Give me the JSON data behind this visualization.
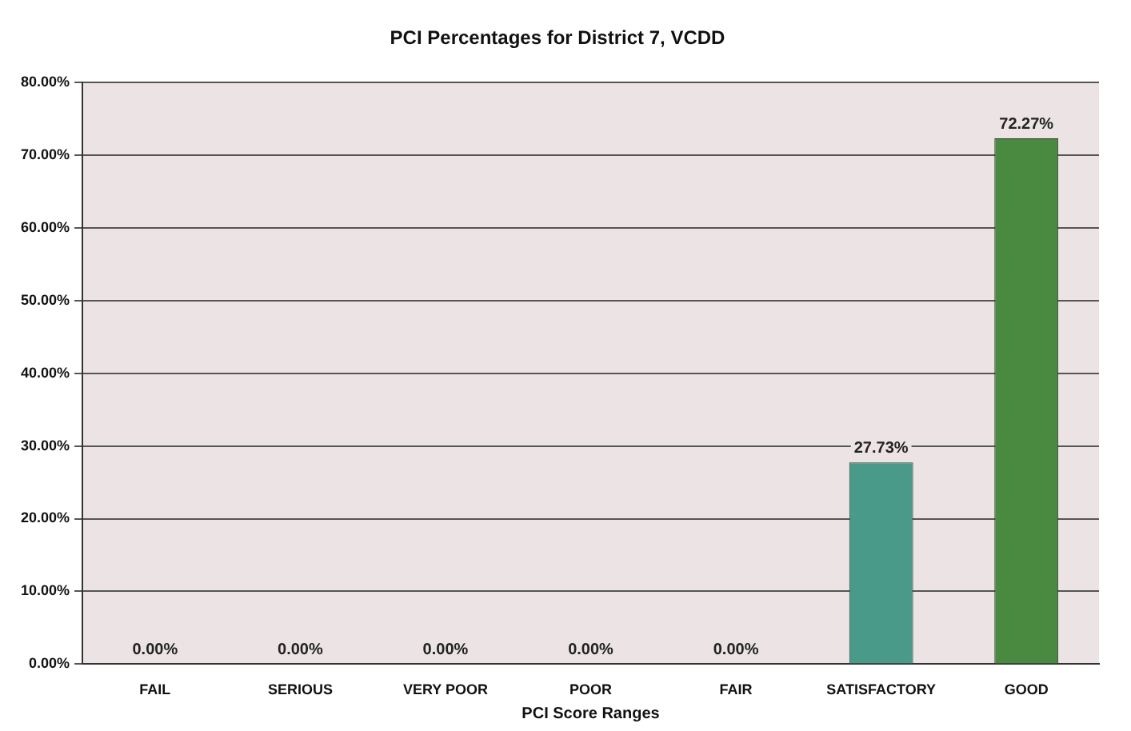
{
  "chart_data": {
    "type": "bar",
    "title": "PCI Percentages for District 7, VCDD",
    "xlabel": "PCI Score Ranges",
    "categories": [
      "FAIL",
      "SERIOUS",
      "VERY POOR",
      "POOR",
      "FAIR",
      "SATISFACTORY",
      "GOOD"
    ],
    "values": [
      0,
      0,
      0,
      0,
      0,
      27.73,
      72.27
    ],
    "colors": [
      "#d03040",
      "#e07030",
      "#e0a030",
      "#d8c830",
      "#b0b830",
      "#4a9a8a",
      "#4a8a40"
    ],
    "value_labels": [
      "0.00%",
      "0.00%",
      "0.00%",
      "0.00%",
      "0.00%",
      "27.73%",
      "72.27%"
    ],
    "ylim": [
      0,
      80
    ],
    "yticks": [
      {
        "value": 0,
        "label": "0.00%"
      },
      {
        "value": 10,
        "label": "10.00%"
      },
      {
        "value": 20,
        "label": "20.00%"
      },
      {
        "value": 30,
        "label": "30.00%"
      },
      {
        "value": 40,
        "label": "40.00%"
      },
      {
        "value": 50,
        "label": "50.00%"
      },
      {
        "value": 60,
        "label": "60.00%"
      },
      {
        "value": 70,
        "label": "70.00%"
      },
      {
        "value": 80,
        "label": "80.00%"
      }
    ],
    "grid": "y",
    "legend": false
  }
}
